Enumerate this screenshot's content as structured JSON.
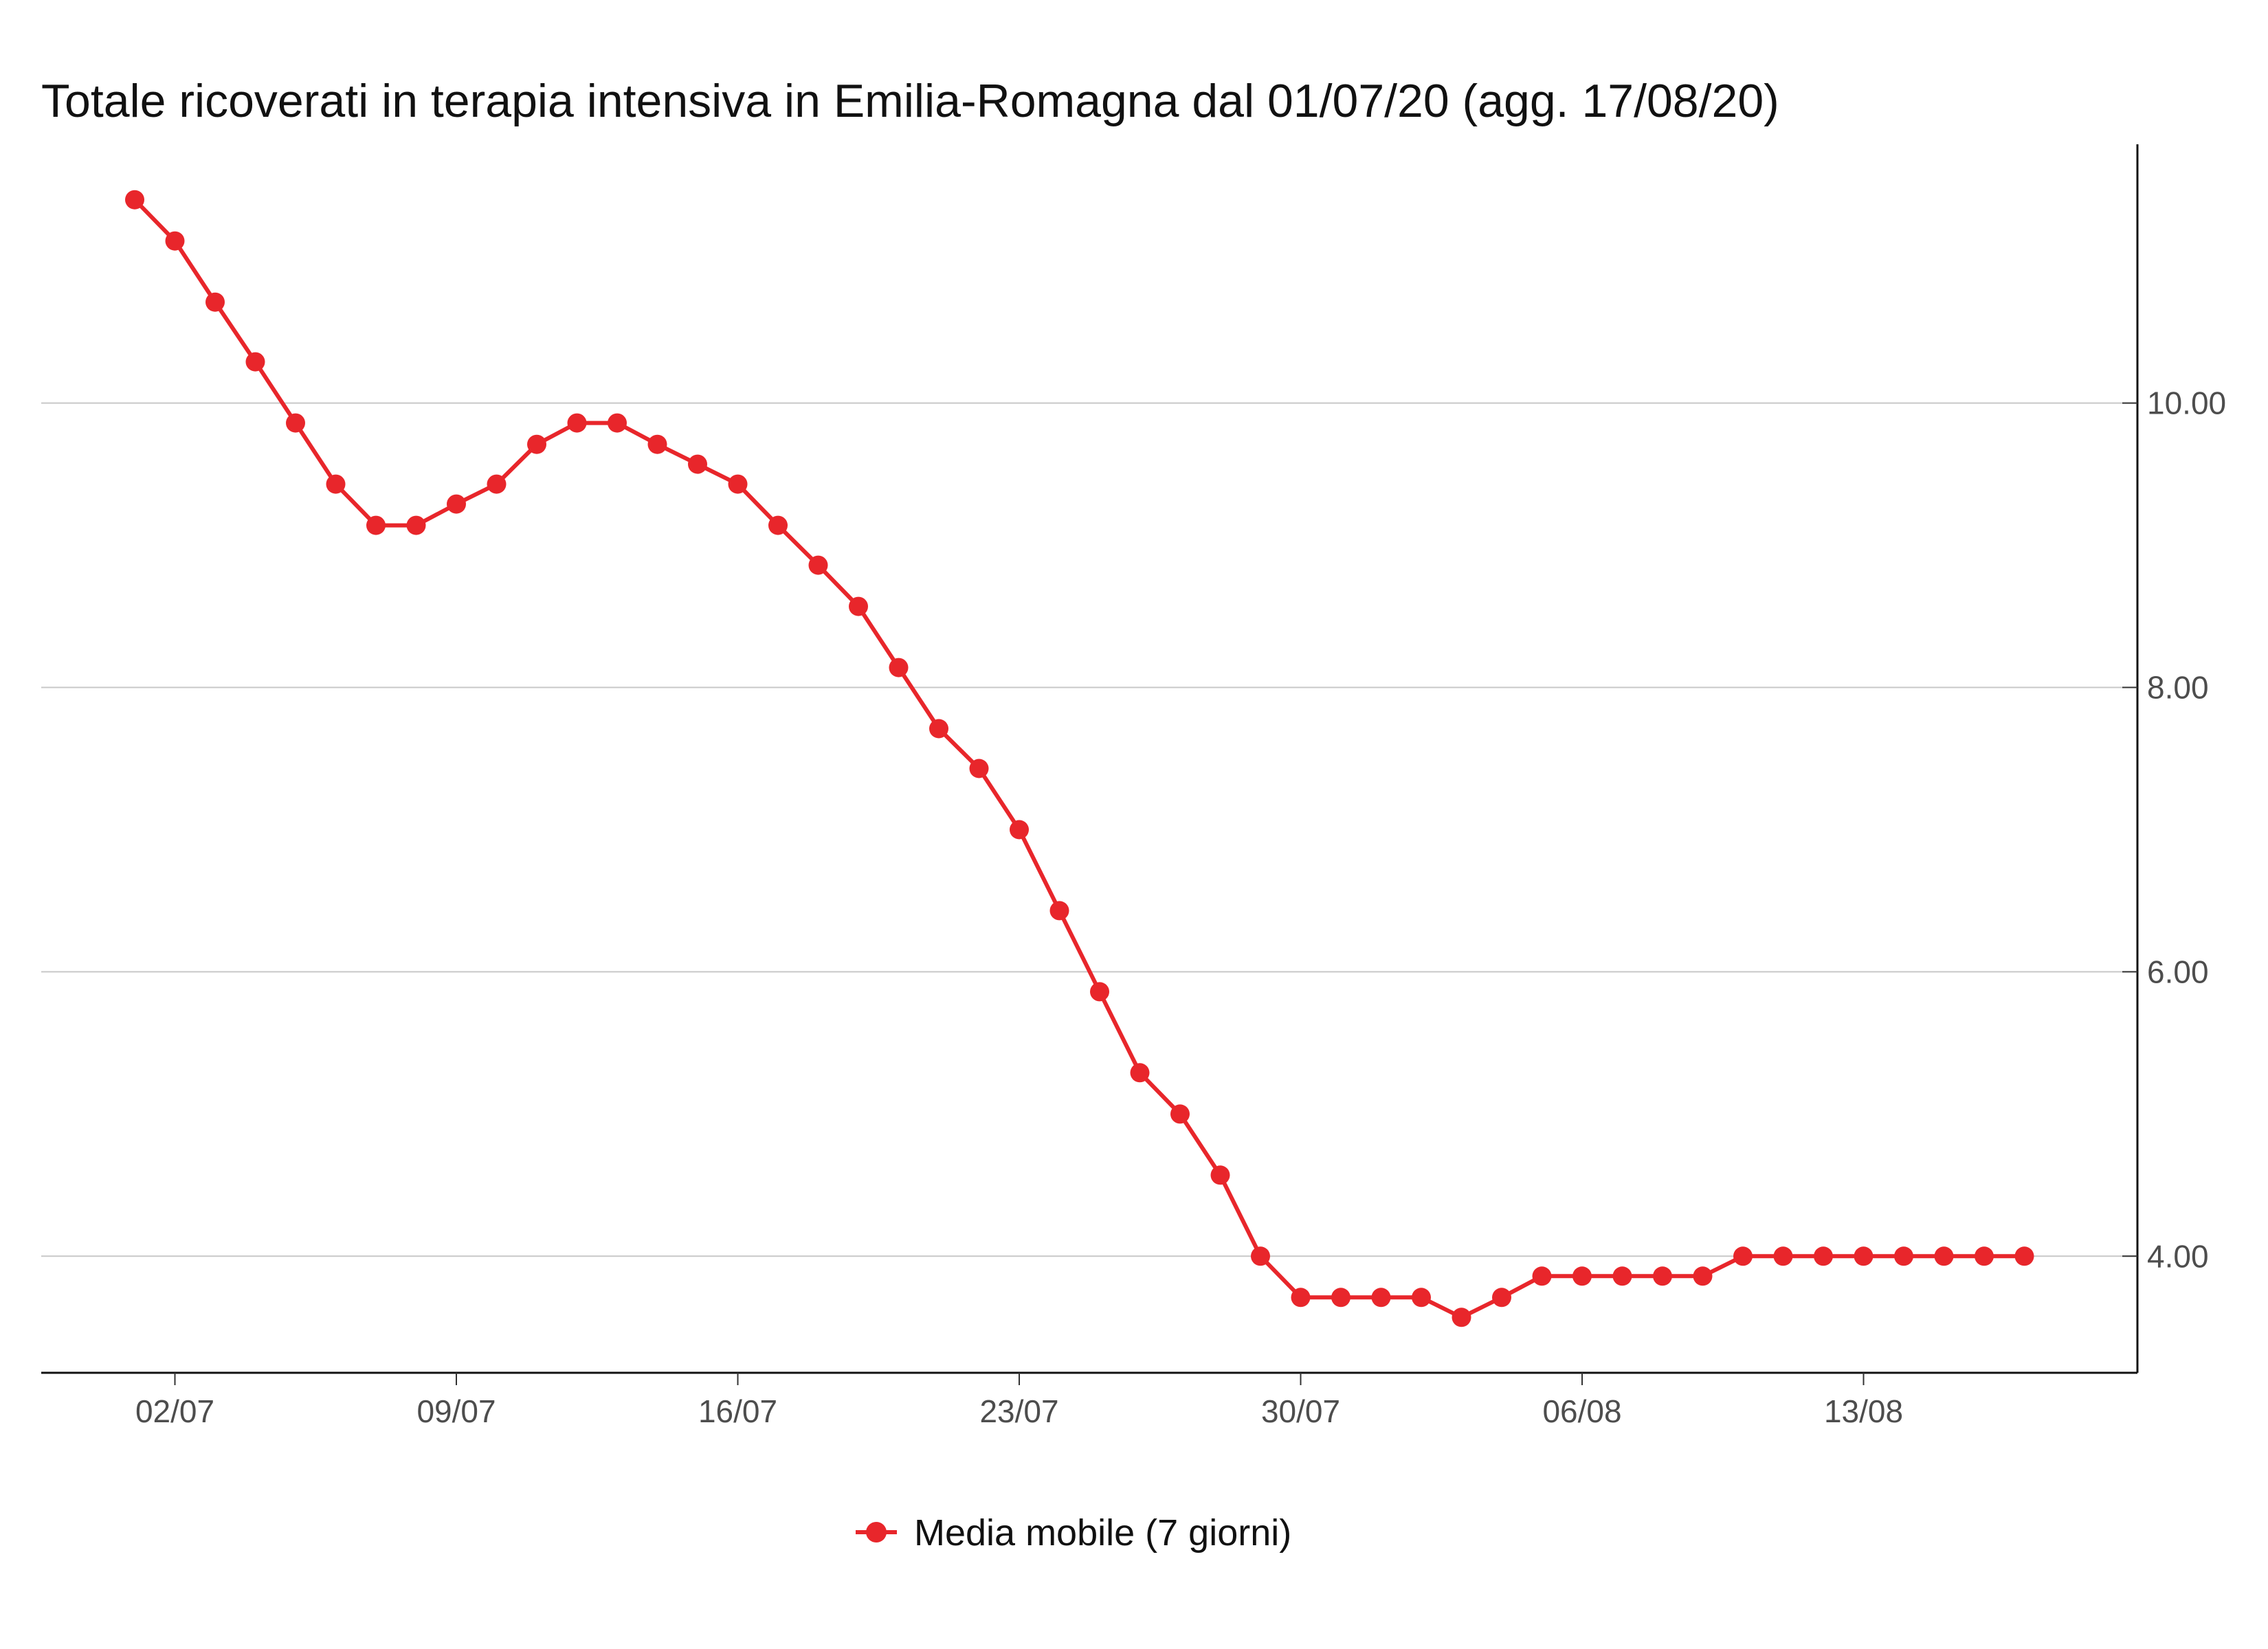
{
  "chart_data": {
    "type": "line",
    "title": "Totale ricoverati in terapia intensiva in Emilia-Romagna dal 01/07/20 (agg. 17/08/20)",
    "xlabel": "",
    "ylabel": "",
    "x": [
      "01/07",
      "02/07",
      "03/07",
      "04/07",
      "05/07",
      "06/07",
      "07/07",
      "08/07",
      "09/07",
      "10/07",
      "11/07",
      "12/07",
      "13/07",
      "14/07",
      "15/07",
      "16/07",
      "17/07",
      "18/07",
      "19/07",
      "20/07",
      "21/07",
      "22/07",
      "23/07",
      "24/07",
      "25/07",
      "26/07",
      "27/07",
      "28/07",
      "29/07",
      "30/07",
      "31/07",
      "01/08",
      "02/08",
      "03/08",
      "04/08",
      "05/08",
      "06/08",
      "07/08",
      "08/08",
      "09/08",
      "10/08",
      "11/08",
      "12/08",
      "13/08",
      "14/08",
      "15/08",
      "16/08",
      "17/08"
    ],
    "series": [
      {
        "name": "Media mobile (7 giorni)",
        "color": "#e8262b",
        "values": [
          11.43,
          11.14,
          10.71,
          10.29,
          9.86,
          9.43,
          9.14,
          9.14,
          9.29,
          9.43,
          9.71,
          9.86,
          9.86,
          9.71,
          9.57,
          9.43,
          9.14,
          8.86,
          8.57,
          8.14,
          7.71,
          7.43,
          7.0,
          6.43,
          5.86,
          5.29,
          5.0,
          4.57,
          4.0,
          3.71,
          3.71,
          3.71,
          3.71,
          3.57,
          3.71,
          3.86,
          3.86,
          3.86,
          3.86,
          3.86,
          4.0,
          4.0,
          4.0,
          4.0,
          4.0,
          4.0,
          4.0,
          4.0
        ]
      }
    ],
    "xticks": [
      "02/07",
      "09/07",
      "16/07",
      "23/07",
      "30/07",
      "06/08",
      "13/08"
    ],
    "yticks": [
      4.0,
      6.0,
      8.0,
      10.0
    ],
    "ytick_labels": [
      "4.00",
      "6.00",
      "8.00",
      "10.00"
    ],
    "ylim": [
      3.18,
      11.82
    ],
    "y_axis_side": "right",
    "grid": "horizontal major only",
    "legend_position": "bottom"
  }
}
